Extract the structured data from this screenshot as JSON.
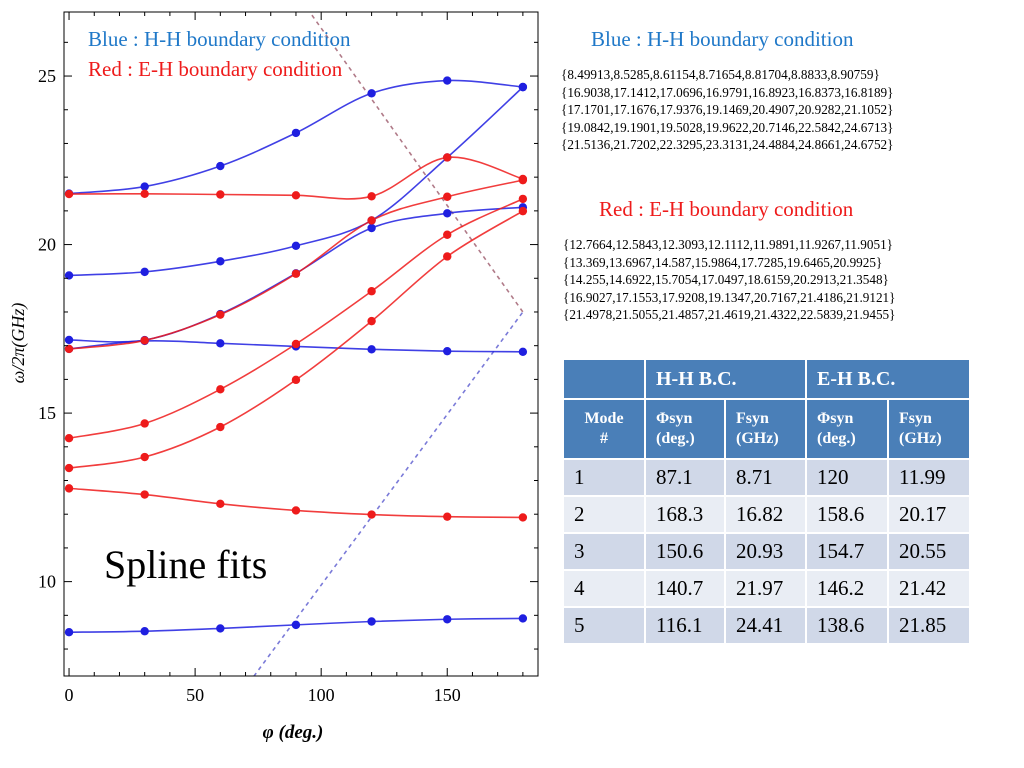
{
  "chart_data": {
    "type": "line",
    "xlabel": "φ (deg.)",
    "ylabel": "ω/2π(GHz)",
    "xlim": [
      -2,
      186
    ],
    "ylim": [
      7.2,
      26.9
    ],
    "x": [
      0,
      30,
      60,
      90,
      120,
      150,
      180
    ],
    "xticks": [
      0,
      50,
      100,
      150
    ],
    "yticks": [
      10,
      15,
      20,
      25
    ],
    "annotation": "Spline fits",
    "legend_placement": "top-left",
    "legend": [
      "Blue : H-H boundary condition",
      "Red : E-H boundary condition"
    ],
    "grid": false,
    "series": [
      {
        "name": "Blue : H-H boundary condition",
        "color": "#1f1fe0",
        "curves": [
          [
            8.49913,
            8.5285,
            8.61154,
            8.71654,
            8.81704,
            8.8833,
            8.90759
          ],
          [
            16.9038,
            17.1412,
            17.0696,
            16.9791,
            16.8923,
            16.8373,
            16.8189
          ],
          [
            17.1701,
            17.1676,
            17.9376,
            19.1469,
            20.4907,
            20.9282,
            21.1052
          ],
          [
            19.0842,
            19.1901,
            19.5028,
            19.9622,
            20.7146,
            22.5842,
            24.6713
          ],
          [
            21.5136,
            21.7202,
            22.3295,
            23.3131,
            24.4884,
            24.8661,
            24.6752
          ]
        ]
      },
      {
        "name": "Red : E-H boundary condition",
        "color": "#ee1b1b",
        "curves": [
          [
            12.7664,
            12.5843,
            12.3093,
            12.1112,
            11.9891,
            11.9267,
            11.9051
          ],
          [
            13.369,
            13.6967,
            14.587,
            15.9864,
            17.7285,
            19.6465,
            20.9925
          ],
          [
            14.255,
            14.6922,
            15.7054,
            17.0497,
            18.6159,
            20.2913,
            21.3548
          ],
          [
            16.9027,
            17.1553,
            17.9208,
            19.1347,
            20.7167,
            21.4186,
            21.9121
          ],
          [
            21.4978,
            21.5055,
            21.4857,
            21.4619,
            21.4322,
            22.5839,
            21.9455
          ]
        ]
      }
    ],
    "light_lines": [
      {
        "color": "#b07a88",
        "points": [
          [
            94.5,
            27.0
          ],
          [
            180,
            18.0
          ]
        ]
      },
      {
        "color": "#7a7ad8",
        "points": [
          [
            71.4,
            7.0
          ],
          [
            180,
            18.0
          ]
        ]
      }
    ]
  },
  "right_panel": {
    "blue_heading": "Blue : H-H boundary condition",
    "blue_lines": [
      "{8.49913,8.5285,8.61154,8.71654,8.81704,8.8833,8.90759}",
      "{16.9038,17.1412,17.0696,16.9791,16.8923,16.8373,16.8189}",
      "{17.1701,17.1676,17.9376,19.1469,20.4907,20.9282,21.1052}",
      "{19.0842,19.1901,19.5028,19.9622,20.7146,22.5842,24.6713}",
      "{21.5136,21.7202,22.3295,23.3131,24.4884,24.8661,24.6752}"
    ],
    "red_heading": "Red : E-H boundary condition",
    "red_lines": [
      "{12.7664,12.5843,12.3093,12.1112,11.9891,11.9267,11.9051}",
      "{13.369,13.6967,14.587,15.9864,17.7285,19.6465,20.9925}",
      "{14.255,14.6922,15.7054,17.0497,18.6159,20.2913,21.3548}",
      "{16.9027,17.1553,17.9208,19.1347,20.7167,21.4186,21.9121}",
      "{21.4978,21.5055,21.4857,21.4619,21.4322,22.5839,21.9455}"
    ]
  },
  "table": {
    "group_headers": [
      "H-H B.C.",
      "E-H B.C."
    ],
    "col_headers": [
      [
        "Mode",
        "#"
      ],
      [
        "Φsyn",
        "(deg.)"
      ],
      [
        "Fsyn",
        "(GHz)"
      ],
      [
        "Φsyn",
        "(deg.)"
      ],
      [
        "Fsyn",
        "(GHz)"
      ]
    ],
    "rows": [
      [
        "1",
        "87.1",
        "8.71",
        "120",
        "11.99"
      ],
      [
        "2",
        "168.3",
        "16.82",
        "158.6",
        "20.17"
      ],
      [
        "3",
        "150.6",
        "20.93",
        "154.7",
        "20.55"
      ],
      [
        "4",
        "140.7",
        "21.97",
        "146.2",
        "21.42"
      ],
      [
        "5",
        "116.1",
        "24.41",
        "138.6",
        "21.85"
      ]
    ]
  }
}
